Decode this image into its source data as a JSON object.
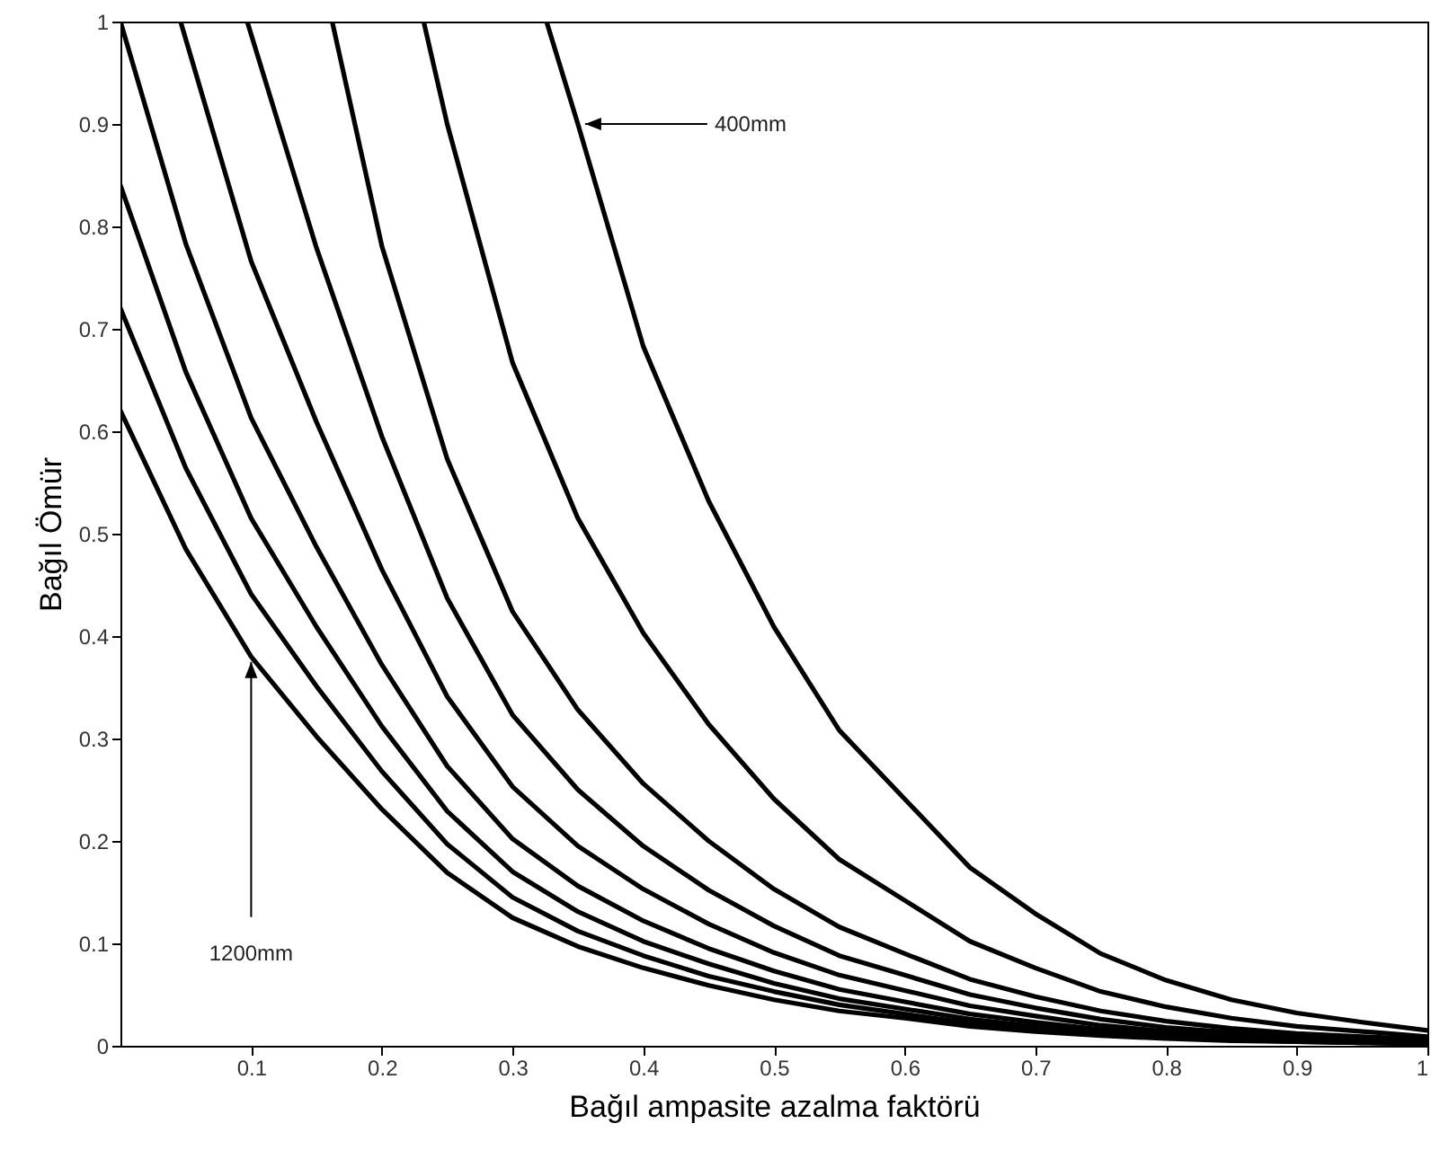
{
  "chart_data": {
    "type": "line",
    "xlabel": "Bağıl ampasite azalma faktörü",
    "ylabel": "Bağıl Ömür",
    "xlim": [
      0,
      1
    ],
    "ylim": [
      0,
      1
    ],
    "xticks": [
      0.1,
      0.2,
      0.3,
      0.4,
      0.5,
      0.6,
      0.7,
      0.8,
      0.9,
      1
    ],
    "yticks": [
      0,
      0.1,
      0.2,
      0.3,
      0.4,
      0.5,
      0.6,
      0.7,
      0.8,
      0.9,
      1
    ],
    "series": [
      {
        "color": "#000000",
        "x": [
          0.326,
          0.35,
          0.4,
          0.45,
          0.5,
          0.55,
          0.6,
          0.65,
          0.7,
          0.75,
          0.8,
          0.85,
          0.9,
          0.95,
          1.0
        ],
        "values": [
          1,
          0.9,
          0.683,
          0.532,
          0.409,
          0.308,
          0.241,
          0.174,
          0.129,
          0.09,
          0.064,
          0.045,
          0.032,
          0.023,
          0.015
        ]
      },
      {
        "color": "#000000",
        "x": [
          0.232,
          0.25,
          0.3,
          0.35,
          0.4,
          0.45,
          0.5,
          0.55,
          0.6,
          0.65,
          0.7,
          0.75,
          0.8,
          0.85,
          0.9,
          0.95,
          1.0
        ],
        "values": [
          1,
          0.9,
          0.667,
          0.515,
          0.403,
          0.314,
          0.241,
          0.182,
          0.142,
          0.102,
          0.076,
          0.053,
          0.038,
          0.027,
          0.019,
          0.014,
          0.009
        ]
      },
      {
        "color": "#000000",
        "x": [
          0.162,
          0.2,
          0.25,
          0.3,
          0.35,
          0.4,
          0.45,
          0.5,
          0.55,
          0.6,
          0.65,
          0.7,
          0.75,
          0.8,
          0.85,
          0.9,
          0.95,
          1.0
        ],
        "values": [
          1,
          0.781,
          0.573,
          0.424,
          0.328,
          0.256,
          0.2,
          0.153,
          0.116,
          0.09,
          0.065,
          0.048,
          0.034,
          0.024,
          0.017,
          0.012,
          0.009,
          0.006
        ]
      },
      {
        "color": "#000000",
        "x": [
          0.097,
          0.15,
          0.2,
          0.25,
          0.3,
          0.35,
          0.4,
          0.45,
          0.5,
          0.55,
          0.6,
          0.65,
          0.7,
          0.75,
          0.8,
          0.85,
          0.9,
          0.95,
          1.0
        ],
        "values": [
          1,
          0.779,
          0.595,
          0.437,
          0.323,
          0.25,
          0.195,
          0.152,
          0.117,
          0.088,
          0.069,
          0.05,
          0.037,
          0.026,
          0.018,
          0.013,
          0.009,
          0.007,
          0.004
        ]
      },
      {
        "color": "#000000",
        "x": [
          0.046,
          0.1,
          0.15,
          0.2,
          0.25,
          0.3,
          0.35,
          0.4,
          0.45,
          0.5,
          0.55,
          0.6,
          0.65,
          0.7,
          0.75,
          0.8,
          0.85,
          0.9,
          0.95,
          1.0
        ],
        "values": [
          1,
          0.766,
          0.609,
          0.465,
          0.341,
          0.253,
          0.195,
          0.153,
          0.119,
          0.091,
          0.069,
          0.054,
          0.039,
          0.029,
          0.02,
          0.014,
          0.01,
          0.007,
          0.005,
          0.003
        ]
      },
      {
        "color": "#000000",
        "x": [
          0,
          0.05,
          0.1,
          0.15,
          0.2,
          0.25,
          0.3,
          0.35,
          0.4,
          0.45,
          0.5,
          0.55,
          0.6,
          0.65,
          0.7,
          0.75,
          0.8,
          0.85,
          0.9,
          0.95,
          1.0
        ],
        "values": [
          1,
          0.783,
          0.613,
          0.487,
          0.372,
          0.273,
          0.202,
          0.156,
          0.122,
          0.095,
          0.073,
          0.055,
          0.043,
          0.031,
          0.023,
          0.016,
          0.011,
          0.008,
          0.006,
          0.004,
          0.003
        ]
      },
      {
        "color": "#000000",
        "x": [
          0,
          0.05,
          0.1,
          0.15,
          0.2,
          0.25,
          0.3,
          0.35,
          0.4,
          0.45,
          0.5,
          0.55,
          0.6,
          0.65,
          0.7,
          0.75,
          0.8,
          0.85,
          0.9,
          0.95,
          1.0
        ],
        "values": [
          0.84,
          0.658,
          0.515,
          0.409,
          0.312,
          0.229,
          0.17,
          0.131,
          0.102,
          0.08,
          0.061,
          0.046,
          0.036,
          0.026,
          0.019,
          0.013,
          0.01,
          0.007,
          0.005,
          0.003,
          0.002
        ]
      },
      {
        "color": "#000000",
        "x": [
          0,
          0.05,
          0.1,
          0.15,
          0.2,
          0.25,
          0.3,
          0.35,
          0.4,
          0.45,
          0.5,
          0.55,
          0.6,
          0.65,
          0.7,
          0.75,
          0.8,
          0.85,
          0.9,
          0.95,
          1.0
        ],
        "values": [
          0.72,
          0.564,
          0.441,
          0.351,
          0.268,
          0.197,
          0.145,
          0.112,
          0.088,
          0.068,
          0.053,
          0.04,
          0.031,
          0.022,
          0.017,
          0.012,
          0.008,
          0.006,
          0.004,
          0.003,
          0.002
        ]
      },
      {
        "color": "#000000",
        "x": [
          0,
          0.05,
          0.1,
          0.15,
          0.2,
          0.25,
          0.3,
          0.35,
          0.4,
          0.45,
          0.5,
          0.55,
          0.6,
          0.65,
          0.7,
          0.75,
          0.8,
          0.85,
          0.9,
          0.95,
          1.0
        ],
        "values": [
          0.62,
          0.485,
          0.38,
          0.302,
          0.231,
          0.169,
          0.125,
          0.097,
          0.076,
          0.059,
          0.045,
          0.034,
          0.027,
          0.019,
          0.014,
          0.01,
          0.007,
          0.005,
          0.004,
          0.003,
          0.002
        ]
      }
    ],
    "annotations": [
      {
        "text": "400mm",
        "x": 0.35,
        "y": 0.9
      },
      {
        "text": "1200mm",
        "x": 0.1,
        "y": 0.38
      }
    ]
  }
}
